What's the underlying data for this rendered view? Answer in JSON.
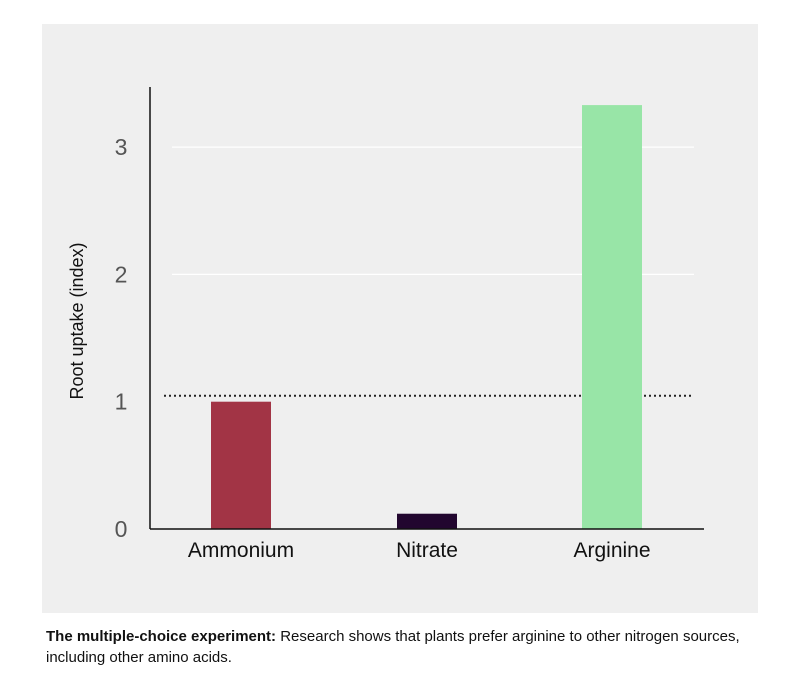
{
  "chart_data": {
    "type": "bar",
    "categories": [
      "Ammonium",
      "Nitrate",
      "Arginine"
    ],
    "values": [
      1.0,
      0.12,
      3.33
    ],
    "colors": [
      "#a23445",
      "#22062f",
      "#98e5a7"
    ],
    "title": "",
    "xlabel": "",
    "ylabel": "Root uptake (index)",
    "ylim": [
      0,
      3.5
    ],
    "yticks": [
      0,
      1,
      2,
      3
    ],
    "gridlines": [
      2,
      3
    ],
    "reference_line": {
      "value": 1,
      "style": "dotted"
    },
    "legend": "none",
    "background": "#efefef"
  },
  "caption": {
    "bold": "The multiple-choice experiment:",
    "text": " Research shows that plants prefer arginine to other nitrogen sources, including other amino acids."
  }
}
